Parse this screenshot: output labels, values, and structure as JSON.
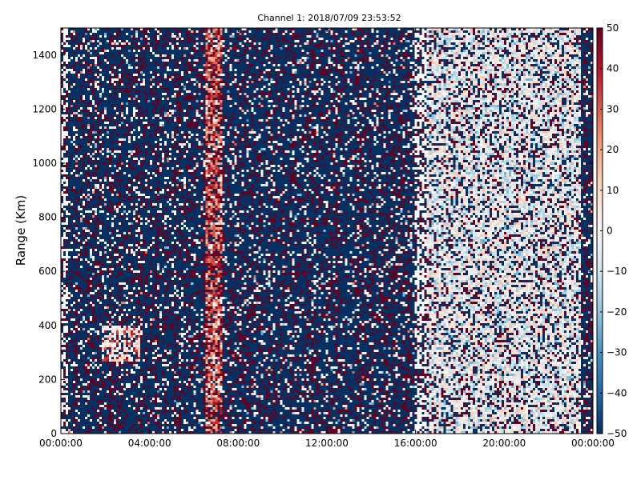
{
  "chart_data": {
    "type": "heatmap",
    "title": "Channel 1: 2018/07/09 23:53:52",
    "xlabel": "",
    "ylabel": "Range (Km)",
    "x_ticks": [
      "00:00:00",
      "04:00:00",
      "08:00:00",
      "12:00:00",
      "16:00:00",
      "20:00:00",
      "00:00:00"
    ],
    "x_range_hours": [
      0,
      24
    ],
    "y_ticks": [
      "0",
      "200",
      "400",
      "600",
      "800",
      "1000",
      "1200",
      "1400"
    ],
    "ylim": [
      0,
      1500
    ],
    "colorbar": {
      "ticks": [
        "50",
        "40",
        "30",
        "20",
        "10",
        "0",
        "−10",
        "−20",
        "−30",
        "−40",
        "−50"
      ],
      "range": [
        -50,
        50
      ],
      "colormap": "RdBu_r",
      "colors": [
        "#053061",
        "#2166ac",
        "#4393c3",
        "#92c5de",
        "#d1e5f0",
        "#f7f7f7",
        "#fddbc7",
        "#f4a582",
        "#d6604d",
        "#b2182b",
        "#67001f"
      ]
    },
    "grid": false,
    "notes_visible_features": {
      "warm_band_hours": [
        6.5,
        7.3
      ],
      "light_region_hours": [
        16.5,
        23.5
      ],
      "light_patch": {
        "hours": [
          1.8,
          3.6
        ],
        "range_km": [
          270,
          400
        ]
      }
    }
  }
}
